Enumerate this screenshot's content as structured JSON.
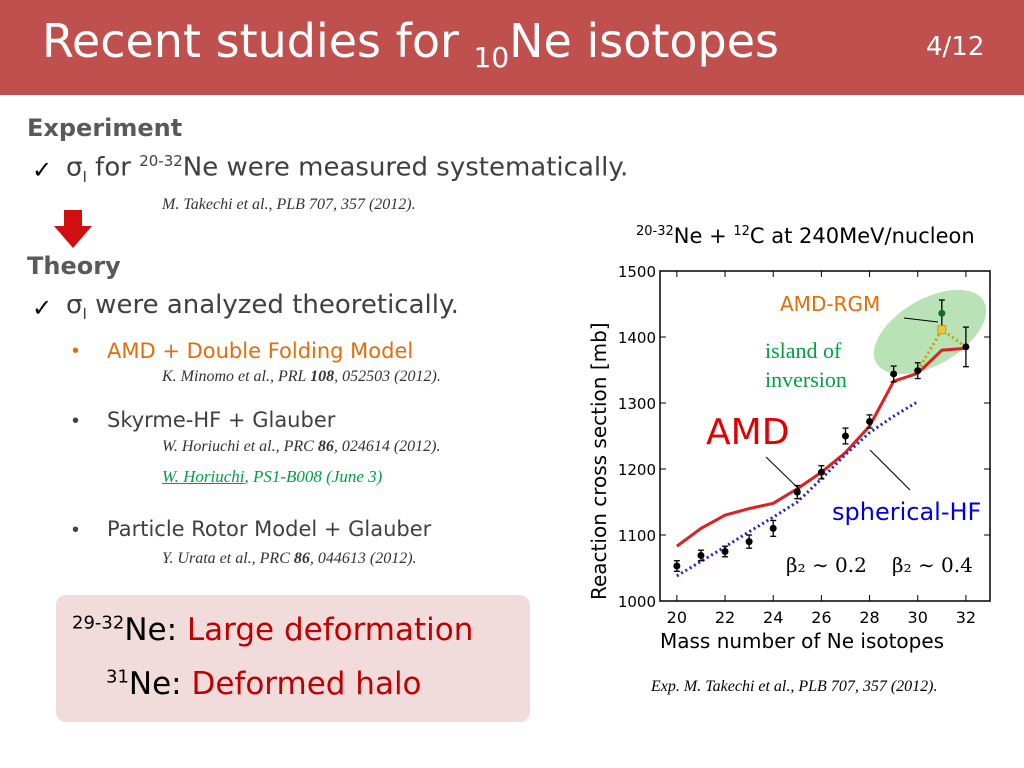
{
  "header": {
    "title_main": "Recent studies for ",
    "title_sub": "10",
    "title_end": "Ne isotopes",
    "page": "4/12"
  },
  "experiment": {
    "heading": "Experiment",
    "check_pre": "σ",
    "check_sub": "I",
    "check_mid": " for ",
    "check_sup": "20-32",
    "check_end": "Ne were measured systematically.",
    "ref": "M. Takechi et al., PLB 707, 357 (2012)."
  },
  "theory": {
    "heading": "Theory",
    "check_pre": "σ",
    "check_sub": "I",
    "check_end": " were analyzed theoretically.",
    "items": [
      {
        "label": "AMD + Double Folding Model",
        "ref_pre": "K. Minomo et al., PRL ",
        "ref_bold": "108",
        "ref_post": ", 052503 (2012)."
      },
      {
        "label": "Skyrme-HF + Glauber",
        "ref_pre": "W. Horiuchi et al., PRC ",
        "ref_bold": "86",
        "ref_post": ", 024614 (2012).",
        "link": "W. Horiuchi",
        "link_post": ", PS1-B008 (June 3)"
      },
      {
        "label": "Particle Rotor Model + Glauber",
        "ref_pre": "Y. Urata et al., PRC ",
        "ref_bold": "86",
        "ref_post": ", 044613 (2012)."
      }
    ]
  },
  "summary": {
    "line1_sup": "29-32",
    "line1_el": "Ne: ",
    "line1_red": "Large deformation",
    "line2_sup": "31",
    "line2_el": "Ne: ",
    "line2_red": "Deformed halo"
  },
  "chart_data": {
    "type": "line",
    "title_sup1": "20-32",
    "title_mid": "Ne + ",
    "title_sup2": "12",
    "title_end": "C at 240MeV/nucleon",
    "xlabel": "Mass number of Ne isotopes",
    "ylabel": "Reaction cross section [mb]",
    "xlim": [
      19.3,
      33
    ],
    "ylim": [
      1000,
      1500
    ],
    "xticks": [
      20,
      22,
      24,
      26,
      28,
      30,
      32
    ],
    "yticks": [
      1000,
      1100,
      1200,
      1300,
      1400,
      1500
    ],
    "series": [
      {
        "name": "Exp.",
        "kind": "points",
        "color": "#000000",
        "x": [
          20,
          21,
          22,
          23,
          24,
          25,
          26,
          27,
          28,
          29,
          30,
          31,
          32
        ],
        "y": [
          1053,
          1069,
          1075,
          1090,
          1110,
          1165,
          1195,
          1250,
          1272,
          1344,
          1349,
          1436,
          1385
        ],
        "err": [
          8,
          8,
          8,
          10,
          12,
          10,
          10,
          12,
          10,
          12,
          12,
          20,
          30
        ]
      },
      {
        "name": "AMD",
        "kind": "solid",
        "color": "#e02020",
        "x": [
          20,
          21,
          22,
          23,
          24,
          25,
          26,
          27,
          28,
          29,
          30,
          31,
          32
        ],
        "y": [
          1083,
          1110,
          1130,
          1140,
          1148,
          1170,
          1195,
          1225,
          1265,
          1333,
          1345,
          1380,
          1383
        ]
      },
      {
        "name": "spherical-HF",
        "kind": "dotted",
        "color": "#1f1fd0",
        "x": [
          20,
          21,
          22,
          23,
          24,
          25,
          26,
          27,
          28,
          29,
          30
        ],
        "y": [
          1038,
          1060,
          1082,
          1105,
          1127,
          1150,
          1185,
          1222,
          1255,
          1280,
          1302
        ]
      },
      {
        "name": "AMD-RGM",
        "kind": "dotted",
        "color": "#c8a000",
        "x": [
          30,
          31,
          32
        ],
        "y": [
          1349,
          1411,
          1385
        ]
      }
    ],
    "annotations": {
      "amd_rgm": "AMD-RGM",
      "island_1": "island of",
      "island_2": "inversion",
      "amd": "AMD",
      "sphf": "spherical-HF",
      "beta1": "β₂ ∼ 0.2",
      "beta2": "β₂ ∼ 0.4"
    },
    "colors": {
      "amd_rgm": "#e46c0a",
      "island": "#00a040",
      "amd": "#e00000",
      "sphf": "#0000dd",
      "island_fill": "#b9e3b7"
    },
    "caption": "Exp. M. Takechi et al., PLB 707, 357 (2012)."
  }
}
